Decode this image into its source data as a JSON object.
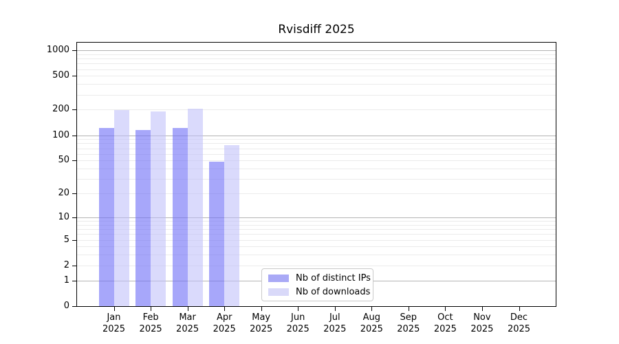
{
  "figure": {
    "title": "Rvisdiff 2025"
  },
  "chart_data": {
    "type": "bar",
    "title": "Rvisdiff 2025",
    "x_categories": [
      "Jan",
      "Feb",
      "Mar",
      "Apr",
      "May",
      "Jun",
      "Jul",
      "Aug",
      "Sep",
      "Oct",
      "Nov",
      "Dec"
    ],
    "x_year": "2025",
    "xlabel": "",
    "ylabel": "",
    "y_ticks": [
      0,
      1,
      2,
      5,
      10,
      20,
      50,
      100,
      200,
      500,
      1000
    ],
    "ylim": [
      0,
      1000
    ],
    "y_scale": "symlog (plotted as log10(value+1))",
    "grid": "horizontal log gridlines; dark at powers of 10, light minors at 2-9 multiples",
    "legend_position": "inside bottom-center",
    "series": [
      {
        "name": "Nb of distinct IPs",
        "swatch": "#a9a9f6",
        "fill": "rgba(108,108,247,0.60)",
        "values": [
          122,
          116,
          123,
          48,
          null,
          null,
          null,
          null,
          null,
          null,
          null,
          null
        ]
      },
      {
        "name": "Nb of downloads",
        "swatch": "#d9d9f9",
        "fill": "rgba(187,187,249,0.55)",
        "values": [
          197,
          192,
          207,
          76,
          null,
          null,
          null,
          null,
          null,
          null,
          null,
          null
        ]
      }
    ]
  }
}
